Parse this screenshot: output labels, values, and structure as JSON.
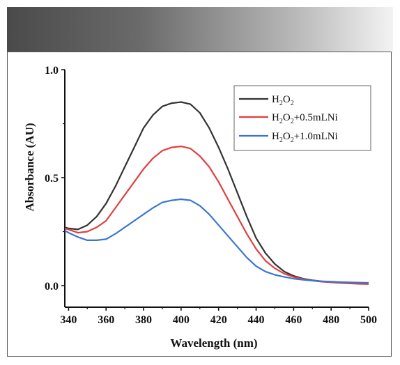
{
  "chart_data": {
    "type": "line",
    "xlabel": "Wavelength (nm)",
    "ylabel": "Absorbance (AU)",
    "xlim": [
      338,
      500
    ],
    "ylim": [
      -0.1,
      1.0
    ],
    "xticks": [
      340,
      360,
      380,
      400,
      420,
      440,
      460,
      480,
      500
    ],
    "yticks": [
      0.0,
      0.5,
      1.0
    ],
    "xtick_labels": [
      "340",
      "360",
      "380",
      "400",
      "420",
      "440",
      "460",
      "480",
      "500"
    ],
    "ytick_labels": [
      "0.0",
      "0.5",
      "1.0"
    ],
    "legend_position": "top-right",
    "series": [
      {
        "name": "H2O2",
        "color": "#333333",
        "x": [
          338,
          340,
          345,
          350,
          355,
          360,
          365,
          370,
          375,
          380,
          385,
          390,
          395,
          400,
          405,
          410,
          415,
          420,
          425,
          430,
          435,
          440,
          445,
          450,
          455,
          460,
          465,
          470,
          475,
          480,
          485,
          490,
          495,
          500
        ],
        "y": [
          0.27,
          0.265,
          0.26,
          0.28,
          0.32,
          0.38,
          0.46,
          0.55,
          0.64,
          0.73,
          0.79,
          0.83,
          0.845,
          0.85,
          0.84,
          0.8,
          0.73,
          0.64,
          0.54,
          0.43,
          0.32,
          0.22,
          0.15,
          0.1,
          0.065,
          0.045,
          0.032,
          0.025,
          0.02,
          0.017,
          0.015,
          0.014,
          0.012,
          0.011
        ]
      },
      {
        "name": "H2O2+0.5mLNi",
        "color": "#e0403f",
        "x": [
          338,
          340,
          345,
          350,
          355,
          360,
          365,
          370,
          375,
          380,
          385,
          390,
          395,
          400,
          405,
          410,
          415,
          420,
          425,
          430,
          435,
          440,
          445,
          450,
          455,
          460,
          465,
          470,
          475,
          480,
          485,
          490,
          495,
          500
        ],
        "y": [
          0.265,
          0.26,
          0.245,
          0.25,
          0.27,
          0.3,
          0.36,
          0.42,
          0.48,
          0.54,
          0.59,
          0.625,
          0.64,
          0.645,
          0.635,
          0.6,
          0.55,
          0.48,
          0.4,
          0.32,
          0.24,
          0.17,
          0.115,
          0.08,
          0.055,
          0.04,
          0.03,
          0.023,
          0.018,
          0.015,
          0.012,
          0.01,
          0.008,
          0.007
        ]
      },
      {
        "name": "H2O2+1.0mLNi",
        "color": "#3a76d0",
        "x": [
          338,
          340,
          345,
          350,
          355,
          360,
          365,
          370,
          375,
          380,
          385,
          390,
          395,
          400,
          405,
          410,
          415,
          420,
          425,
          430,
          435,
          440,
          445,
          450,
          455,
          460,
          465,
          470,
          475,
          480,
          485,
          490,
          495,
          500
        ],
        "y": [
          0.255,
          0.245,
          0.225,
          0.21,
          0.21,
          0.215,
          0.24,
          0.27,
          0.3,
          0.33,
          0.36,
          0.385,
          0.395,
          0.4,
          0.395,
          0.37,
          0.33,
          0.28,
          0.23,
          0.18,
          0.13,
          0.09,
          0.065,
          0.05,
          0.04,
          0.032,
          0.027,
          0.023,
          0.02,
          0.018,
          0.016,
          0.015,
          0.014,
          0.013
        ]
      }
    ]
  },
  "legend": {
    "items": [
      {
        "base": "H",
        "sub1": "2",
        "mid": "O",
        "sub2": "2",
        "suffix": ""
      },
      {
        "base": "H",
        "sub1": "2",
        "mid": "O",
        "sub2": "2",
        "suffix": "+0.5mLNi"
      },
      {
        "base": "H",
        "sub1": "2",
        "mid": "O",
        "sub2": "2",
        "suffix": "+1.0mLNi"
      }
    ]
  }
}
